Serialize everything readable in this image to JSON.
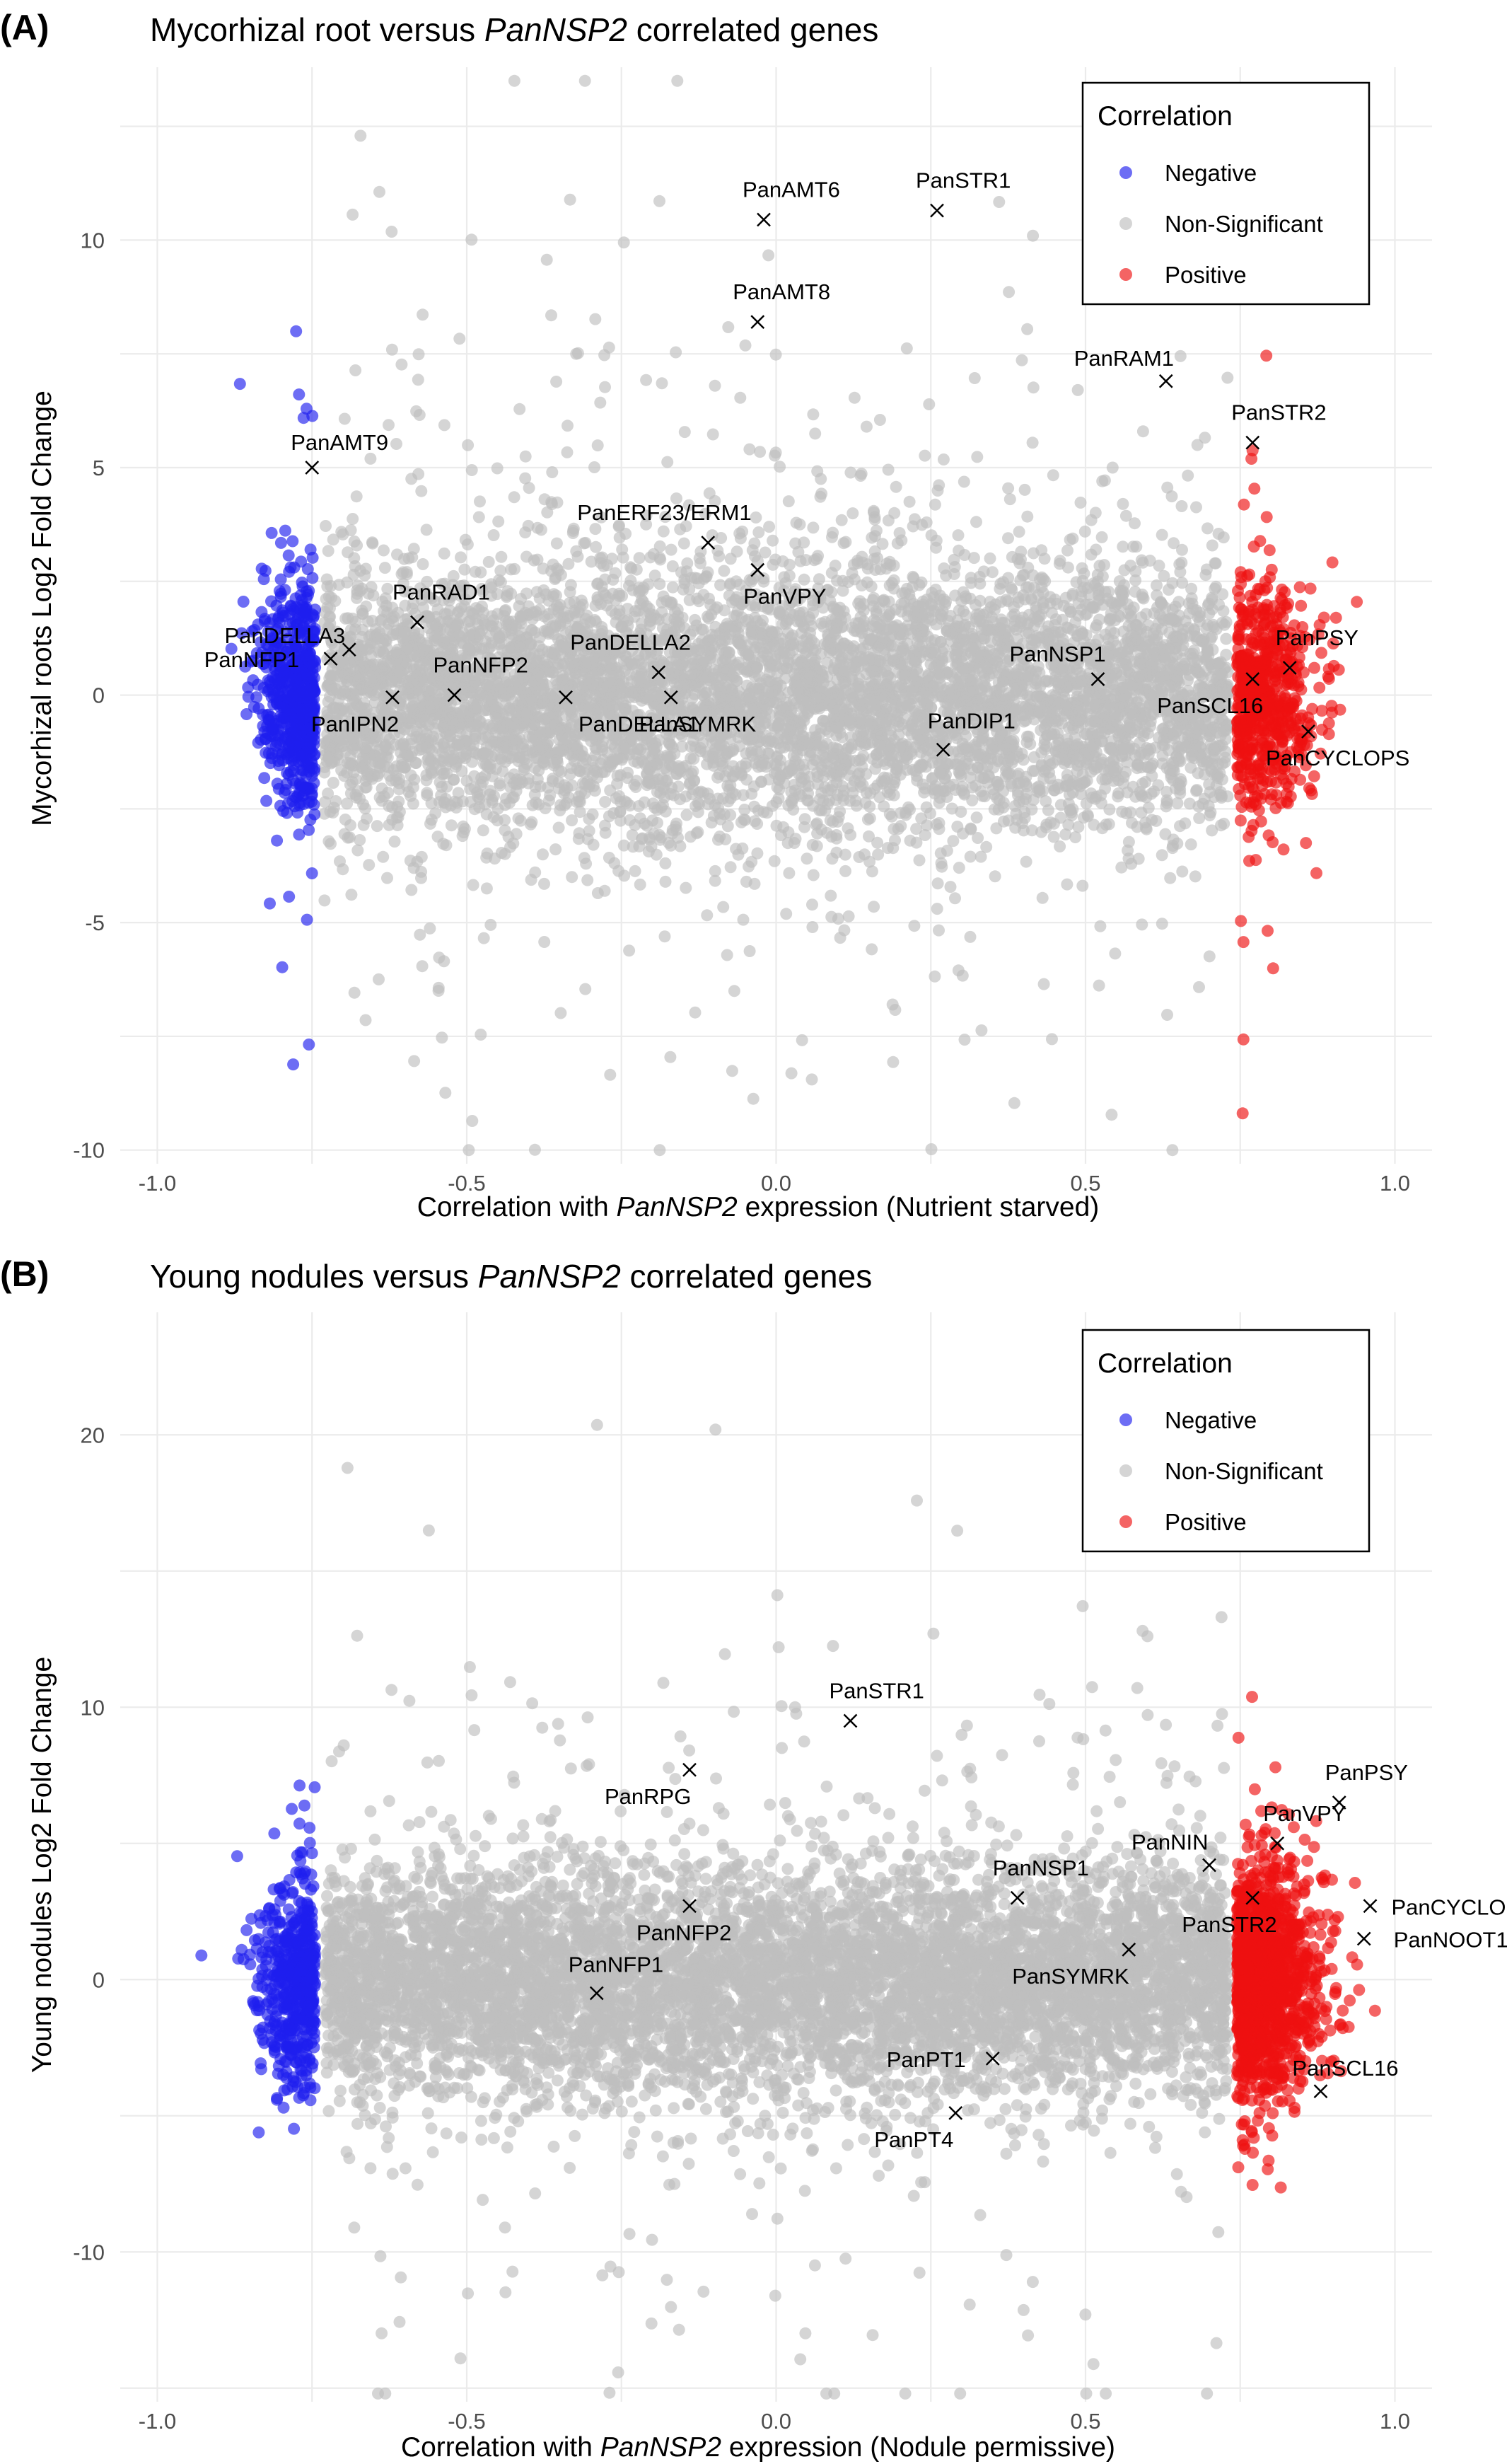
{
  "colors": {
    "negative": "#1f1fee",
    "nonsignificant": "#bebebe",
    "positive": "#ee1111",
    "grid": "#ebebeb"
  },
  "legend": {
    "title": "Correlation",
    "items": [
      "Negative",
      "Non-Significant",
      "Positive"
    ]
  },
  "chart_data": [
    {
      "panel_label": "(A)",
      "type": "scatter",
      "title_parts": [
        "Mycorhizal root versus ",
        "PanNSP2",
        " correlated genes"
      ],
      "xlabel_parts": [
        "Correlation with ",
        "PanNSP2",
        " expression (Nutrient starved)"
      ],
      "ylabel": "Mycorhizal roots Log2 Fold Change",
      "xlim": [
        -1.06,
        1.06
      ],
      "ylim": [
        -10.3,
        13.8
      ],
      "x_ticks": [
        -1.0,
        -0.5,
        0.0,
        0.5,
        1.0
      ],
      "x_tick_labels": [
        "-1.0",
        "-0.5",
        "0.0",
        "0.5",
        "1.0"
      ],
      "y_ticks": [
        -10,
        -5,
        0,
        5,
        10
      ],
      "y_tick_labels": [
        "-10",
        "-5",
        "0",
        "5",
        "10"
      ],
      "significance_thresholds": [
        -0.74,
        0.74
      ],
      "legend_position": "top-right",
      "annotated_genes": [
        {
          "name": "PanAMT9",
          "x": -0.75,
          "y": 5.0
        },
        {
          "name": "PanDELLA3",
          "x": -0.72,
          "y": 0.8
        },
        {
          "name": "PanNFP1",
          "x": -0.69,
          "y": 1.0
        },
        {
          "name": "PanIPN2",
          "x": -0.62,
          "y": -0.05
        },
        {
          "name": "PanRAD1",
          "x": -0.58,
          "y": 1.6
        },
        {
          "name": "PanNFP2",
          "x": -0.52,
          "y": 0.0
        },
        {
          "name": "PanDELLA1",
          "x": -0.34,
          "y": -0.05
        },
        {
          "name": "PanDELLA2",
          "x": -0.19,
          "y": 0.5
        },
        {
          "name": "PanSYMRK",
          "x": -0.17,
          "y": -0.05
        },
        {
          "name": "PanERF23/ERM1",
          "x": -0.11,
          "y": 3.35
        },
        {
          "name": "PanVPY",
          "x": -0.03,
          "y": 2.75
        },
        {
          "name": "PanAMT8",
          "x": -0.03,
          "y": 8.2
        },
        {
          "name": "PanAMT6",
          "x": -0.02,
          "y": 10.45
        },
        {
          "name": "PanSTR1",
          "x": 0.26,
          "y": 10.65
        },
        {
          "name": "PanDIP1",
          "x": 0.27,
          "y": -1.2
        },
        {
          "name": "PanNSP1",
          "x": 0.52,
          "y": 0.35
        },
        {
          "name": "PanRAM1",
          "x": 0.63,
          "y": 6.9
        },
        {
          "name": "PanSTR2",
          "x": 0.77,
          "y": 5.55
        },
        {
          "name": "PanSCL16",
          "x": 0.77,
          "y": 0.35
        },
        {
          "name": "PanPSY",
          "x": 0.83,
          "y": 0.6
        },
        {
          "name": "PanCYCLOPS",
          "x": 0.86,
          "y": -0.8
        }
      ]
    },
    {
      "panel_label": "(B)",
      "type": "scatter",
      "title_parts": [
        "Young nodules versus ",
        "PanNSP2",
        " correlated genes"
      ],
      "xlabel_parts": [
        "Correlation with ",
        "PanNSP2",
        " expression (Nodule permissive)"
      ],
      "ylabel": "Young nodules Log2 Fold Change",
      "xlim": [
        -1.06,
        1.06
      ],
      "ylim": [
        -15.5,
        24.5
      ],
      "x_ticks": [
        -1.0,
        -0.5,
        0.0,
        0.5,
        1.0
      ],
      "x_tick_labels": [
        "-1.0",
        "-0.5",
        "0.0",
        "0.5",
        "1.0"
      ],
      "y_ticks": [
        -10,
        0,
        10,
        20
      ],
      "y_tick_labels": [
        "-10",
        "0",
        "10",
        "20"
      ],
      "significance_thresholds": [
        -0.74,
        0.74
      ],
      "legend_position": "top-right",
      "annotated_genes": [
        {
          "name": "PanSTR1",
          "x": 0.12,
          "y": 9.5
        },
        {
          "name": "PanRPG",
          "x": -0.14,
          "y": 7.7
        },
        {
          "name": "PanNFP2",
          "x": -0.14,
          "y": 2.7
        },
        {
          "name": "PanNFP1",
          "x": -0.29,
          "y": -0.5
        },
        {
          "name": "PanNSP1",
          "x": 0.39,
          "y": 3.0
        },
        {
          "name": "PanSYMRK",
          "x": 0.57,
          "y": 1.1
        },
        {
          "name": "PanPT1",
          "x": 0.35,
          "y": -2.9
        },
        {
          "name": "PanPT4",
          "x": 0.29,
          "y": -4.9
        },
        {
          "name": "PanNIN",
          "x": 0.7,
          "y": 4.2
        },
        {
          "name": "PanSTR2",
          "x": 0.77,
          "y": 3.0
        },
        {
          "name": "PanVPY",
          "x": 0.81,
          "y": 5.0
        },
        {
          "name": "PanPSY",
          "x": 0.91,
          "y": 6.5
        },
        {
          "name": "PanCYCLOPS",
          "x": 0.96,
          "y": 2.7
        },
        {
          "name": "PanNOOT1",
          "x": 0.95,
          "y": 1.5
        },
        {
          "name": "PanSCL16",
          "x": 0.88,
          "y": -4.1
        }
      ]
    }
  ]
}
